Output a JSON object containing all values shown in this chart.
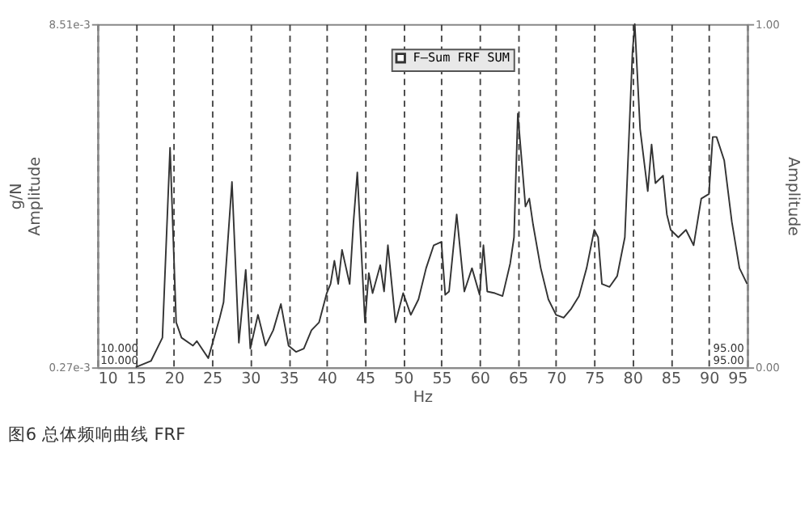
{
  "chart_data": {
    "type": "line",
    "title": "图6 总体频响曲线 FRF",
    "xlabel": "Hz",
    "ylabel": "g/N\nAmplitude",
    "y2label": "Amplitude",
    "xlim": [
      10,
      95
    ],
    "xticks": [
      10,
      15,
      20,
      25,
      30,
      35,
      40,
      45,
      50,
      55,
      60,
      65,
      70,
      75,
      80,
      85,
      90,
      95
    ],
    "ylim": [
      0.00027,
      0.00851
    ],
    "yticks": [
      {
        "value": 0.00027,
        "label": "0.27e-3"
      },
      {
        "value": 0.00851,
        "label": "8.51e-3"
      }
    ],
    "y2lim": [
      0,
      1
    ],
    "y2ticks": [
      {
        "value": 0,
        "label": "0.00"
      },
      {
        "value": 1,
        "label": "1.00"
      }
    ],
    "grid": "x",
    "legend": "top",
    "marker": "none",
    "line_style": "solid",
    "series": [
      {
        "name": "F—Sum FRF SUM",
        "color": "#333333",
        "x": [
          15,
          17,
          18.5,
          19.5,
          20.3,
          21,
          22.5,
          23,
          24.5,
          26,
          26.5,
          27.6,
          28.5,
          29.4,
          30,
          31,
          32,
          33,
          34,
          35,
          36,
          37,
          38,
          39,
          40,
          40.5,
          41,
          41.5,
          42,
          43,
          43.5,
          44,
          45,
          45.5,
          46,
          47,
          47.5,
          48,
          49,
          50,
          51,
          52,
          53,
          54,
          55,
          55.5,
          56,
          57,
          58,
          59,
          60,
          60.5,
          61,
          62,
          63,
          64,
          64.5,
          65,
          66,
          66.5,
          67,
          68,
          69,
          70,
          71,
          72,
          73,
          74,
          75,
          75.5,
          76,
          77,
          78,
          79,
          80,
          80.3,
          81,
          82,
          82.5,
          83,
          84,
          84.5,
          85,
          86,
          87,
          88,
          89,
          90,
          90.5,
          91,
          92,
          93,
          94,
          95
        ],
        "values": [
          0.00027,
          0.00042,
          0.00098,
          0.00554,
          0.00135,
          0.00098,
          0.00079,
          0.0009,
          0.00049,
          0.00146,
          0.00183,
          0.00472,
          0.00086,
          0.00261,
          0.00072,
          0.00153,
          0.00079,
          0.00116,
          0.00179,
          0.00079,
          0.00064,
          0.00072,
          0.00116,
          0.00135,
          0.00205,
          0.00227,
          0.00283,
          0.00227,
          0.00309,
          0.00227,
          0.00376,
          0.00495,
          0.00135,
          0.00253,
          0.00205,
          0.00272,
          0.00209,
          0.0032,
          0.00135,
          0.00205,
          0.00153,
          0.0019,
          0.00265,
          0.0032,
          0.00328,
          0.00201,
          0.00209,
          0.00394,
          0.00209,
          0.00265,
          0.00201,
          0.0032,
          0.00209,
          0.00205,
          0.00198,
          0.00276,
          0.00339,
          0.00636,
          0.00413,
          0.00432,
          0.00369,
          0.00265,
          0.0019,
          0.00153,
          0.00146,
          0.00168,
          0.00198,
          0.00265,
          0.00357,
          0.00339,
          0.00227,
          0.0022,
          0.00246,
          0.00339,
          0.00784,
          0.00851,
          0.00599,
          0.0045,
          0.00562,
          0.00469,
          0.00487,
          0.00394,
          0.00357,
          0.00339,
          0.00357,
          0.0032,
          0.00432,
          0.00443,
          0.0058,
          0.0058,
          0.00524,
          0.00376,
          0.00265,
          0.00227
        ]
      }
    ],
    "annotations": [
      "10.000",
      "10.000",
      "95.00",
      "95.00"
    ]
  }
}
